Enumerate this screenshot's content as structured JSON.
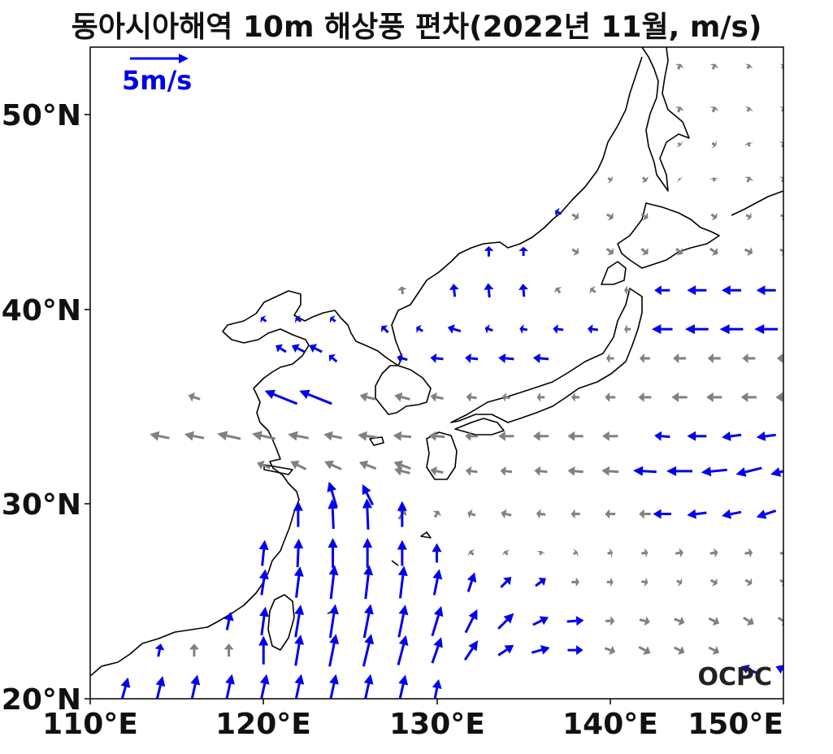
{
  "title": "동아시아해역 10m 해상풍 편차(2022년 11월, m/s)",
  "reference_arrow": {
    "label": "5m/s",
    "magnitude": 5,
    "color": "#0000ee"
  },
  "logo": "OCPC",
  "colors": {
    "significant": "#0000ee",
    "normal": "#808080",
    "coast": "#000000"
  },
  "chart_data": {
    "type": "quiver",
    "xlim": [
      110,
      150
    ],
    "ylim": [
      20,
      53.5
    ],
    "x_ticks": [
      {
        "value": 110,
        "label": "110°E"
      },
      {
        "value": 120,
        "label": "120°E"
      },
      {
        "value": 130,
        "label": "130°E"
      },
      {
        "value": 140,
        "label": "140°E"
      },
      {
        "value": 150,
        "label": "150°E"
      }
    ],
    "y_ticks": [
      {
        "value": 20,
        "label": "20°N"
      },
      {
        "value": 30,
        "label": "30°N"
      },
      {
        "value": 40,
        "label": "40°N"
      },
      {
        "value": 50,
        "label": "50°N"
      }
    ],
    "vectors_blue": [
      [
        112,
        20.5,
        0.5,
        1.8
      ],
      [
        114,
        20.5,
        0.5,
        2.0
      ],
      [
        116,
        20.5,
        0.5,
        2.2
      ],
      [
        118,
        20.5,
        0.5,
        2.3
      ],
      [
        120,
        20.5,
        0.5,
        2.3
      ],
      [
        122,
        20.5,
        0.5,
        2.3
      ],
      [
        124,
        20.5,
        0.5,
        2.3
      ],
      [
        126,
        20.5,
        0.5,
        2.3
      ],
      [
        128,
        20.5,
        0.5,
        2.2
      ],
      [
        130,
        20.5,
        0.3,
        1.5
      ],
      [
        114,
        22.5,
        0.2,
        1.0
      ],
      [
        120,
        22.5,
        0,
        2.2
      ],
      [
        122,
        22.5,
        0.4,
        2.4
      ],
      [
        124,
        22.5,
        0.5,
        2.5
      ],
      [
        126,
        22.5,
        0.6,
        2.5
      ],
      [
        128,
        22.5,
        0.6,
        2.3
      ],
      [
        130,
        22.5,
        0.7,
        2.0
      ],
      [
        132,
        22.5,
        1.0,
        1.5
      ],
      [
        134,
        22.5,
        1.2,
        0.8
      ],
      [
        136,
        22.5,
        1.4,
        0.4
      ],
      [
        138,
        22.5,
        1.2,
        0
      ],
      [
        118,
        24,
        0.3,
        1.4
      ],
      [
        120,
        24,
        0.3,
        2.2
      ],
      [
        122,
        24,
        0.4,
        2.5
      ],
      [
        124,
        24,
        0.4,
        2.6
      ],
      [
        126,
        24,
        0.5,
        2.6
      ],
      [
        128,
        24,
        0.5,
        2.5
      ],
      [
        130,
        24,
        0.7,
        2.3
      ],
      [
        132,
        24,
        0.9,
        1.8
      ],
      [
        134,
        24,
        1.2,
        1.2
      ],
      [
        136,
        24,
        1.2,
        0.6
      ],
      [
        138,
        24,
        1.3,
        0.1
      ],
      [
        120,
        26,
        0.3,
        2.0
      ],
      [
        122,
        26,
        0.3,
        2.4
      ],
      [
        124,
        26,
        0.3,
        2.6
      ],
      [
        126,
        26,
        0.3,
        2.6
      ],
      [
        128,
        26,
        0.3,
        2.5
      ],
      [
        130,
        26,
        0.4,
        2.0
      ],
      [
        132,
        26,
        0.5,
        1.5
      ],
      [
        134,
        26,
        0.8,
        0.8
      ],
      [
        136,
        26,
        0.8,
        0.6
      ],
      [
        120,
        27.5,
        0.2,
        2.0
      ],
      [
        122,
        27.5,
        0.1,
        2.2
      ],
      [
        124,
        27.5,
        0,
        2.3
      ],
      [
        126,
        27.5,
        0,
        2.3
      ],
      [
        128,
        27.5,
        0,
        2.0
      ],
      [
        130,
        27.5,
        0,
        1.5
      ],
      [
        122,
        29.5,
        0,
        2.0
      ],
      [
        124,
        29.5,
        -0.1,
        2.3
      ],
      [
        126,
        29.5,
        -0.1,
        2.4
      ],
      [
        128,
        29.5,
        0,
        2.0
      ],
      [
        124,
        30.5,
        -0.6,
        2.0
      ],
      [
        126,
        30.5,
        -0.8,
        1.6
      ],
      [
        121,
        35.5,
        -2.5,
        1.0
      ],
      [
        123,
        35.5,
        -2.5,
        1.0
      ],
      [
        124,
        37.5,
        -0.6,
        0.5
      ],
      [
        121,
        38,
        -0.8,
        0.5
      ],
      [
        122,
        38,
        -1.0,
        0.5
      ],
      [
        123,
        38,
        -1.0,
        0.5
      ],
      [
        120,
        39.5,
        -0.4,
        0.3
      ],
      [
        122,
        39.5,
        -0.4,
        0.3
      ],
      [
        124,
        39.5,
        -0.4,
        0.3
      ],
      [
        127,
        39,
        -0.5,
        0.5
      ],
      [
        129,
        39,
        -0.5,
        0.3
      ],
      [
        131,
        39,
        -1.0,
        0.3
      ],
      [
        133,
        39,
        -0.6,
        0.2
      ],
      [
        135,
        39,
        -0.6,
        0.1
      ],
      [
        137,
        39,
        -0.8,
        0.1
      ],
      [
        139,
        39,
        -0.8,
        0.1
      ],
      [
        128,
        37.5,
        -0.8,
        0.2
      ],
      [
        130,
        37.5,
        -1.0,
        0.1
      ],
      [
        132,
        37.5,
        -1.0,
        0.1
      ],
      [
        134,
        37.5,
        -1.2,
        0.1
      ],
      [
        136,
        37.5,
        -1.2,
        0.1
      ],
      [
        131,
        41,
        -0.1,
        1.0
      ],
      [
        133,
        41,
        -0.1,
        1.1
      ],
      [
        135,
        41,
        -0.1,
        1.0
      ],
      [
        133,
        43,
        0,
        0.8
      ],
      [
        135,
        43,
        0,
        0.7
      ],
      [
        137,
        45,
        -0.5,
        0.2
      ],
      [
        143,
        41,
        -1.2,
        0
      ],
      [
        145,
        41,
        -1.5,
        0
      ],
      [
        147,
        41,
        -1.5,
        0
      ],
      [
        149,
        41,
        -1.5,
        0
      ],
      [
        151,
        41,
        -1.5,
        0
      ],
      [
        143,
        39,
        -1.6,
        0
      ],
      [
        145,
        39,
        -1.8,
        0
      ],
      [
        147,
        39,
        -1.8,
        0
      ],
      [
        149,
        39,
        -1.8,
        0
      ],
      [
        151,
        39,
        -1.8,
        0
      ],
      [
        143,
        33.5,
        -1.2,
        0.1
      ],
      [
        145,
        33.5,
        -1.5,
        0
      ],
      [
        147,
        33.5,
        -1.5,
        -0.2
      ],
      [
        149,
        33.5,
        -1.5,
        -0.2
      ],
      [
        151,
        33.5,
        -1.5,
        -0.3
      ],
      [
        142,
        31.7,
        -1.8,
        0.1
      ],
      [
        144,
        31.7,
        -2.0,
        0
      ],
      [
        146,
        31.7,
        -2.0,
        -0.2
      ],
      [
        148,
        31.7,
        -2.0,
        -0.5
      ],
      [
        150,
        31.7,
        -2.0,
        -0.5
      ],
      [
        143,
        29.5,
        -1.4,
        0
      ],
      [
        145,
        29.5,
        -1.5,
        -0.2
      ],
      [
        147,
        29.5,
        -1.5,
        -0.3
      ],
      [
        149,
        29.5,
        -1.5,
        -0.5
      ],
      [
        151,
        29.5,
        -1.5,
        -0.5
      ],
      [
        148,
        21.5,
        -1.2,
        0.5
      ],
      [
        150,
        21.5,
        -1.2,
        0.5
      ]
    ],
    "vectors_gray": [
      [
        116,
        22.5,
        0,
        1.0
      ],
      [
        118,
        22.5,
        0,
        1.0
      ],
      [
        136,
        26,
        0.5,
        0.3
      ],
      [
        138,
        26,
        0.6,
        0
      ],
      [
        140,
        26,
        0.5,
        0
      ],
      [
        142,
        26,
        0.5,
        -0.1
      ],
      [
        144,
        26,
        0.4,
        -0.2
      ],
      [
        146,
        26,
        0.5,
        -0.3
      ],
      [
        148,
        26,
        0.5,
        -0.3
      ],
      [
        150,
        26,
        0.5,
        -0.3
      ],
      [
        140,
        24,
        0.7,
        0
      ],
      [
        142,
        24,
        0.8,
        -0.2
      ],
      [
        144,
        24,
        0.8,
        -0.3
      ],
      [
        146,
        24,
        0.8,
        -0.4
      ],
      [
        148,
        24,
        0.8,
        -0.5
      ],
      [
        150,
        24,
        0.8,
        -0.5
      ],
      [
        140,
        22.5,
        0.8,
        -0.3
      ],
      [
        142,
        22.5,
        0.9,
        -0.5
      ],
      [
        144,
        22.5,
        0.8,
        -0.4
      ],
      [
        146,
        22.5,
        0.8,
        -0.4
      ],
      [
        132,
        27.5,
        -0.3,
        0.3
      ],
      [
        134,
        27.5,
        -0.2,
        0.3
      ],
      [
        136,
        27.5,
        0.1,
        0.3
      ],
      [
        138,
        27.5,
        0.3,
        0.2
      ],
      [
        140,
        27.5,
        0.4,
        0.1
      ],
      [
        142,
        27.5,
        0.5,
        0.1
      ],
      [
        144,
        27.5,
        0.6,
        0.1
      ],
      [
        146,
        27.5,
        0.6,
        0.1
      ],
      [
        148,
        27.5,
        0.6,
        0.1
      ],
      [
        150,
        27.5,
        0.5,
        0.1
      ],
      [
        128,
        29.5,
        0.5,
        0.8
      ],
      [
        130,
        29.5,
        0.3,
        0.5
      ],
      [
        132,
        29.5,
        -0.6,
        0.2
      ],
      [
        134,
        29.5,
        -0.8,
        0.2
      ],
      [
        136,
        29.5,
        -0.7,
        0.1
      ],
      [
        138,
        29.5,
        -0.7,
        0
      ],
      [
        140,
        29.5,
        -0.8,
        0
      ],
      [
        142,
        29.5,
        -0.9,
        0
      ],
      [
        128,
        31.7,
        -1.2,
        0.3
      ],
      [
        130,
        31.7,
        -1.0,
        0.2
      ],
      [
        132,
        31.7,
        -0.9,
        0.1
      ],
      [
        134,
        31.7,
        -0.9,
        0.1
      ],
      [
        136,
        31.7,
        -1.0,
        0.1
      ],
      [
        138,
        31.7,
        -1.2,
        0.1
      ],
      [
        140,
        31.7,
        -1.3,
        0.1
      ],
      [
        120,
        32,
        -1.0,
        0.4
      ],
      [
        122,
        32,
        -1.2,
        0.6
      ],
      [
        124,
        32,
        -1.3,
        0.6
      ],
      [
        126,
        32,
        -1.3,
        0.5
      ],
      [
        128,
        32,
        -1.3,
        0.5
      ],
      [
        114,
        33.5,
        -1.5,
        0.3
      ],
      [
        116,
        33.5,
        -1.5,
        0.3
      ],
      [
        118,
        33.5,
        -1.8,
        0.4
      ],
      [
        120,
        33.5,
        -1.8,
        0.4
      ],
      [
        122,
        33.5,
        -1.6,
        0.3
      ],
      [
        124,
        33.5,
        -1.4,
        0.3
      ],
      [
        126,
        33.5,
        -1.5,
        0.2
      ],
      [
        128,
        33.5,
        -1.4,
        0.1
      ],
      [
        130,
        33.5,
        -1.2,
        0.1
      ],
      [
        132,
        33.5,
        -1.0,
        0
      ],
      [
        134,
        33.5,
        -1.2,
        0
      ],
      [
        136,
        33.5,
        -1.2,
        0
      ],
      [
        138,
        33.5,
        -1.2,
        0
      ],
      [
        140,
        33.5,
        -1.2,
        0
      ],
      [
        116,
        35.5,
        -0.9,
        0.3
      ],
      [
        126,
        35.5,
        -1.2,
        0.3
      ],
      [
        128,
        35.5,
        -1.2,
        0.3
      ],
      [
        130,
        35.5,
        -1.0,
        0.2
      ],
      [
        132,
        35.5,
        -0.8,
        0.1
      ],
      [
        134,
        35.5,
        -0.6,
        0.1
      ],
      [
        136,
        35.5,
        -0.6,
        0
      ],
      [
        138,
        35.5,
        -0.6,
        0
      ],
      [
        140,
        35.5,
        -0.8,
        0
      ],
      [
        142,
        35.5,
        -1.0,
        0
      ],
      [
        144,
        35.5,
        -1.2,
        0
      ],
      [
        146,
        35.5,
        -1.2,
        0
      ],
      [
        148,
        35.5,
        -1.2,
        0
      ],
      [
        150,
        35.5,
        -1.2,
        0
      ],
      [
        140,
        37.5,
        -0.6,
        0
      ],
      [
        142,
        37.5,
        -0.8,
        0
      ],
      [
        144,
        37.5,
        -1.0,
        0
      ],
      [
        146,
        37.5,
        -1.0,
        0
      ],
      [
        148,
        37.5,
        -1.0,
        0
      ],
      [
        150,
        37.5,
        -1.0,
        0
      ],
      [
        141,
        39,
        -0.5,
        0
      ],
      [
        141,
        41,
        -0.5,
        0
      ],
      [
        128,
        41,
        -0.1,
        0.6
      ],
      [
        137,
        41,
        -0.3,
        0.4
      ],
      [
        139,
        41,
        -0.4,
        0.3
      ],
      [
        138,
        43,
        0.5,
        -0.3
      ],
      [
        140,
        43,
        0.5,
        -0.4
      ],
      [
        142,
        43,
        0.5,
        -0.4
      ],
      [
        144,
        43,
        0.5,
        -0.4
      ],
      [
        146,
        43,
        0.6,
        -0.4
      ],
      [
        148,
        43,
        0.6,
        -0.3
      ],
      [
        150,
        43,
        0.5,
        -0.3
      ],
      [
        138,
        44.8,
        0.5,
        -0.3
      ],
      [
        140,
        44.8,
        0.5,
        -0.3
      ],
      [
        142,
        44.8,
        0.5,
        -0.3
      ],
      [
        146,
        44.8,
        0.4,
        -0.3
      ],
      [
        148,
        44.8,
        0.4,
        -0.2
      ],
      [
        150,
        44.8,
        0.4,
        -0.2
      ],
      [
        140,
        46.7,
        0.3,
        -0.2
      ],
      [
        142,
        46.7,
        0.3,
        -0.3
      ],
      [
        144,
        46.7,
        0.1,
        -0.1
      ],
      [
        146,
        46.7,
        0,
        0.3
      ],
      [
        148,
        46.7,
        0.2,
        0.4
      ],
      [
        150,
        46.7,
        0.2,
        0.4
      ],
      [
        144,
        48.5,
        0.2,
        -0.2
      ],
      [
        146,
        48.5,
        0.3,
        -0.2
      ],
      [
        148,
        48.5,
        -0.1,
        0.3
      ],
      [
        150,
        48.5,
        0.2,
        0.4
      ],
      [
        144,
        50.3,
        0.2,
        0.4
      ],
      [
        146,
        50.3,
        0.2,
        0.4
      ],
      [
        148,
        50.3,
        0.2,
        0.3
      ],
      [
        150,
        50.3,
        0.2,
        0.3
      ],
      [
        144,
        52.5,
        0.2,
        0.4
      ],
      [
        146,
        52.5,
        0.2,
        0.4
      ],
      [
        148,
        52.5,
        0.2,
        0.3
      ],
      [
        150,
        52.5,
        0.2,
        0.3
      ]
    ]
  }
}
